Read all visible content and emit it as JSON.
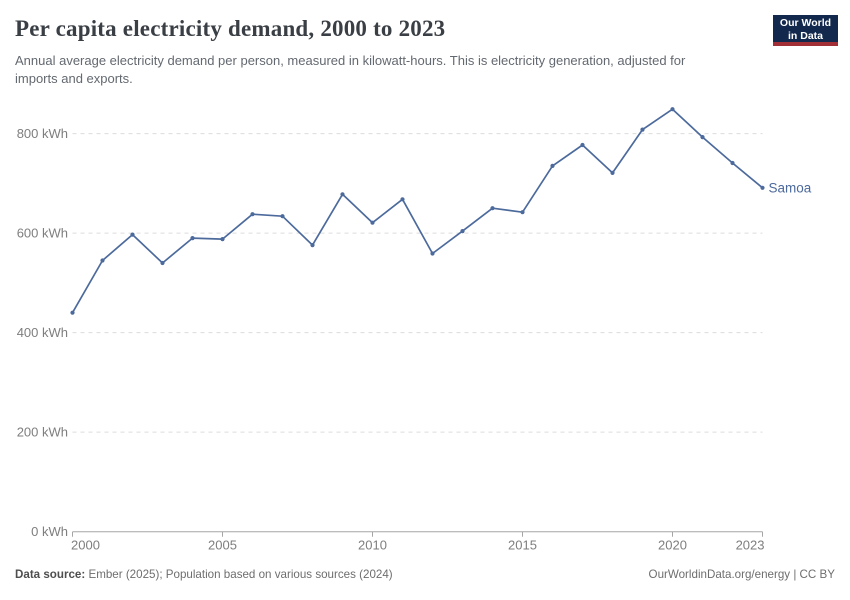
{
  "header": {
    "title": "Per capita electricity demand, 2000 to 2023",
    "subtitle": "Annual average electricity demand per person, measured in kilowatt-hours. This is electricity generation, adjusted for imports and exports.",
    "logo": {
      "line1": "Our World",
      "line2": "in Data"
    }
  },
  "chart_data": {
    "type": "line",
    "title": "Per capita electricity demand, 2000 to 2023",
    "xlabel": "",
    "ylabel": "kWh",
    "x": [
      2000,
      2001,
      2002,
      2003,
      2004,
      2005,
      2006,
      2007,
      2008,
      2009,
      2010,
      2011,
      2012,
      2013,
      2014,
      2015,
      2016,
      2017,
      2018,
      2019,
      2020,
      2021,
      2022,
      2023
    ],
    "series": [
      {
        "name": "Samoa",
        "color": "#4c6a9c",
        "values": [
          440,
          545,
          597,
          540,
          590,
          588,
          638,
          634,
          576,
          678,
          621,
          668,
          559,
          604,
          650,
          642,
          735,
          777,
          721,
          808,
          849,
          793,
          741,
          691
        ]
      }
    ],
    "ylim": [
      0,
      800
    ],
    "yticks": [
      0,
      200,
      400,
      600,
      800
    ],
    "ytick_labels": [
      "0 kWh",
      "200 kWh",
      "400 kWh",
      "600 kWh",
      "800 kWh"
    ],
    "xticks": [
      2000,
      2005,
      2010,
      2015,
      2020,
      2023
    ],
    "grid": "horizontal-dashed",
    "legend_position": "end-of-line-label"
  },
  "footer": {
    "source_label": "Data source:",
    "source_text": " Ember (2025); Population based on various sources (2024)",
    "credit": "OurWorldinData.org/energy | CC BY"
  },
  "colors": {
    "line": "#4c6a9c",
    "grid": "#dcdcdc",
    "axis": "#a5a5a5",
    "tick_text": "#7e7e7e",
    "logo_bg": "#12294d",
    "logo_stripe": "#a22f36"
  }
}
